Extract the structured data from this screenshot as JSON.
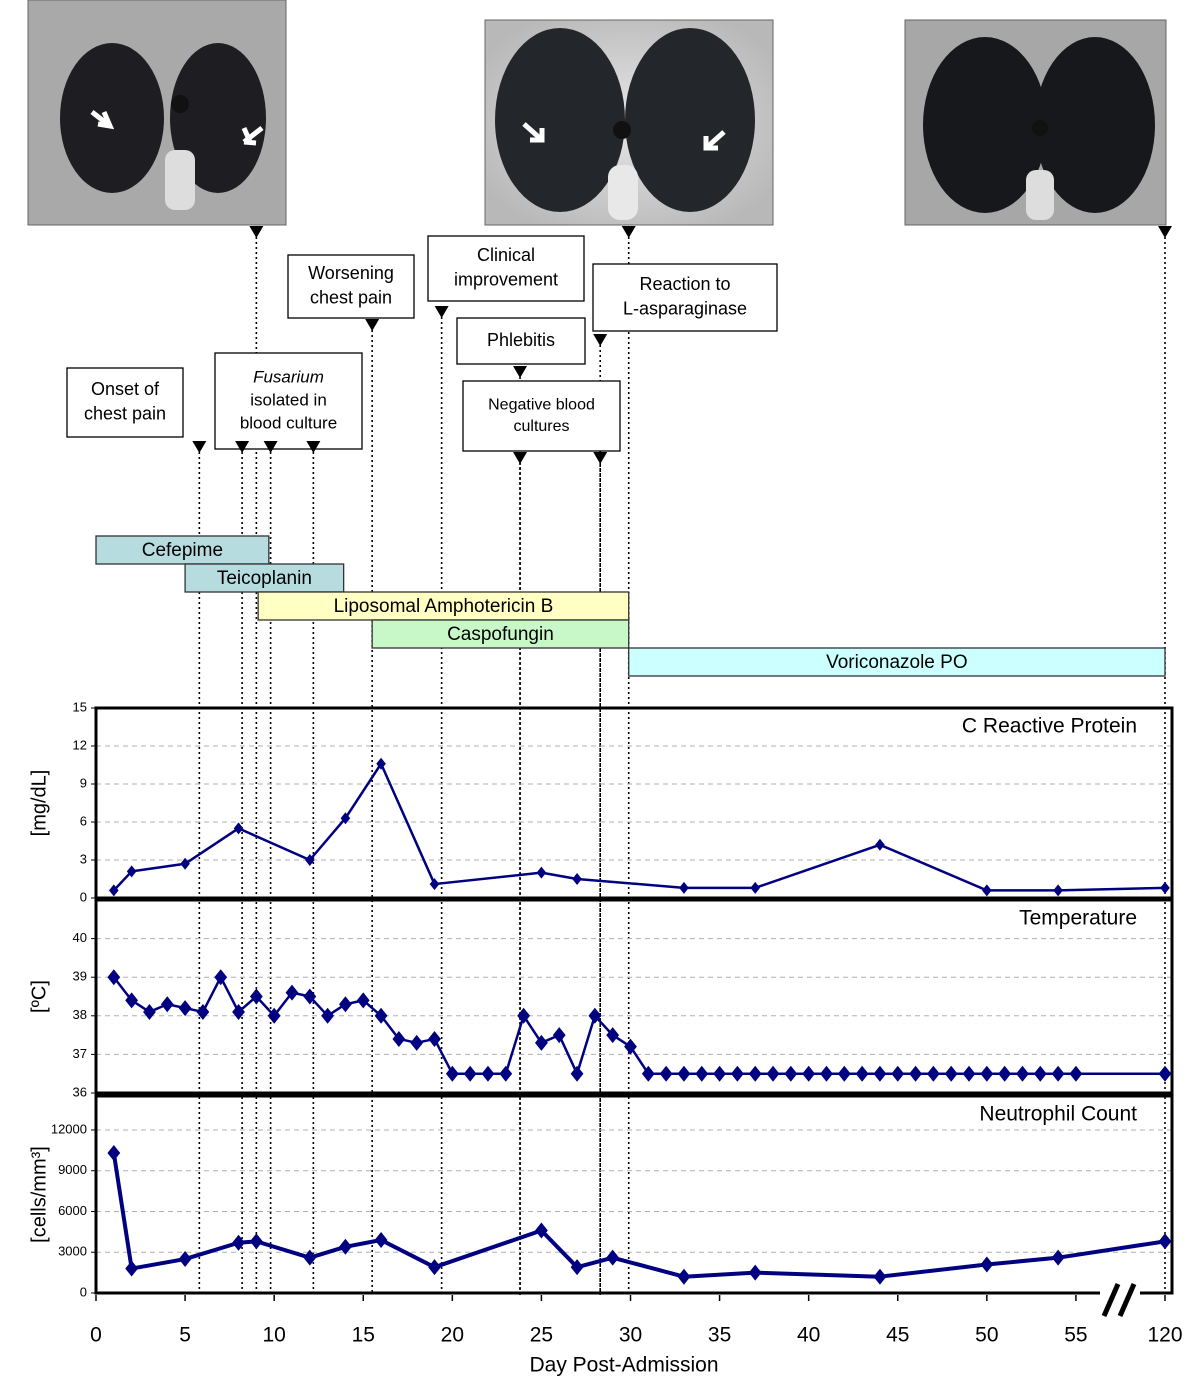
{
  "images": [
    {
      "day": 9
    },
    {
      "day": 29.9
    },
    {
      "day": 120
    }
  ],
  "events": [
    {
      "lines": [
        "Onset of",
        "chest pain"
      ],
      "days": [
        5.8
      ]
    },
    {
      "lines": [
        "Fusarium",
        "isolated in",
        "blood culture"
      ],
      "italic_lines": [
        0
      ],
      "days": [
        8.2,
        9.8,
        12.2
      ]
    },
    {
      "lines": [
        "Worsening",
        "chest pain"
      ],
      "days": [
        15.5
      ]
    },
    {
      "lines": [
        "Clinical",
        "improvement"
      ],
      "days": [
        19.4
      ]
    },
    {
      "lines": [
        "Phlebitis"
      ],
      "days": [
        23.8
      ]
    },
    {
      "lines": [
        "Negative blood",
        "cultures"
      ],
      "days": [
        23.8,
        28.3
      ]
    },
    {
      "lines": [
        "Reaction to",
        "L-asparaginase"
      ],
      "days": [
        28.3
      ]
    }
  ],
  "drugs": [
    {
      "name": "Cefepime",
      "start": 0,
      "end": 9.7,
      "color": "#b6dcdf"
    },
    {
      "name": "Teicoplanin",
      "start": 5,
      "end": 13.9,
      "color": "#b6dcdf"
    },
    {
      "name": "Liposomal Amphotericin B",
      "start": 9.1,
      "end": 29.9,
      "color": "#ffffc4"
    },
    {
      "name": "Caspofungin",
      "start": 15.5,
      "end": 29.9,
      "color": "#c8f7c8"
    },
    {
      "name": "Voriconazole PO",
      "start": 29.9,
      "end": 120,
      "color": "#ccffff"
    }
  ],
  "chart_data": [
    {
      "type": "line",
      "title": "C Reactive Protein",
      "ylabel": "[mg/dL]",
      "color": "#000080",
      "grid": true,
      "x": [
        1,
        2,
        5,
        8,
        12,
        14,
        16,
        19,
        25,
        27,
        33,
        37,
        44,
        50,
        54,
        120
      ],
      "values": [
        0.6,
        2.1,
        2.7,
        5.5,
        3,
        6.3,
        10.6,
        1.1,
        2,
        1.5,
        0.8,
        0.8,
        4.2,
        0.6,
        0.6,
        0.8
      ],
      "ylim": [
        0,
        15
      ],
      "yticks": [
        0,
        3,
        6,
        9,
        12,
        15
      ]
    },
    {
      "type": "line",
      "title": "Temperature",
      "ylabel": "[ºC]",
      "color": "#000080",
      "grid": true,
      "x": [
        1,
        2,
        3,
        4,
        5,
        6,
        7,
        8,
        9,
        10,
        11,
        12,
        13,
        14,
        15,
        16,
        17,
        18,
        19,
        20,
        21,
        22,
        23,
        24,
        25,
        26,
        27,
        28,
        29,
        30,
        31,
        32,
        33,
        34,
        35,
        36,
        37,
        38,
        39,
        40,
        41,
        42,
        43,
        44,
        45,
        46,
        47,
        48,
        49,
        50,
        51,
        52,
        53,
        54,
        55,
        120
      ],
      "values": [
        39,
        38.4,
        38.1,
        38.3,
        38.2,
        38.1,
        39,
        38.1,
        38.5,
        38,
        38.6,
        38.5,
        38,
        38.3,
        38.4,
        38,
        37.4,
        37.3,
        37.4,
        36.5,
        36.5,
        36.5,
        36.5,
        38,
        37.3,
        37.5,
        36.5,
        38,
        37.5,
        37.2,
        36.5,
        36.5,
        36.5,
        36.5,
        36.5,
        36.5,
        36.5,
        36.5,
        36.5,
        36.5,
        36.5,
        36.5,
        36.5,
        36.5,
        36.5,
        36.5,
        36.5,
        36.5,
        36.5,
        36.5,
        36.5,
        36.5,
        36.5,
        36.5,
        36.5,
        36.5
      ],
      "ylim": [
        36,
        41
      ],
      "yticks": [
        36,
        37,
        38,
        39,
        40
      ]
    },
    {
      "type": "line",
      "title": "Neutrophil Count",
      "ylabel": "[cells/mm³]",
      "color": "#000080",
      "grid": true,
      "x": [
        1,
        2,
        5,
        8,
        9,
        12,
        14,
        16,
        19,
        25,
        27,
        29,
        33,
        37,
        44,
        50,
        54,
        120
      ],
      "values": [
        10300,
        1800,
        2500,
        3700,
        3800,
        2600,
        3400,
        3900,
        1900,
        4600,
        1900,
        2600,
        1200,
        1500,
        1200,
        2100,
        2600,
        3800
      ],
      "ylim": [
        0,
        14500
      ],
      "yticks": [
        0,
        3000,
        6000,
        9000,
        12000
      ],
      "xlabel": "Day Post-Admission",
      "xticks": [
        0,
        5,
        10,
        15,
        20,
        25,
        30,
        35,
        40,
        45,
        50,
        55,
        120
      ]
    }
  ]
}
